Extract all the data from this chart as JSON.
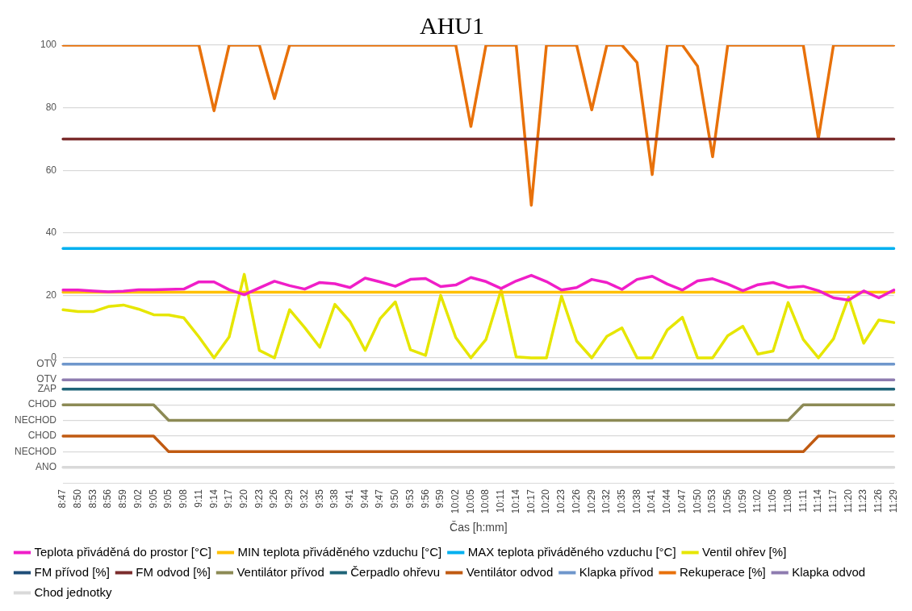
{
  "chart_data": {
    "type": "line",
    "title": "AHU1",
    "xlabel": "Čas [h:mm]",
    "categories": [
      "8:47",
      "8:50",
      "8:53",
      "8:56",
      "8:59",
      "9:02",
      "9:05",
      "9:05",
      "9:08",
      "9:11",
      "9:14",
      "9:17",
      "9:20",
      "9:23",
      "9:26",
      "9:29",
      "9:32",
      "9:35",
      "9:38",
      "9:41",
      "9:44",
      "9:47",
      "9:50",
      "9:53",
      "9:56",
      "9:59",
      "10:02",
      "10:05",
      "10:08",
      "10:11",
      "10:14",
      "10:17",
      "10:20",
      "10:23",
      "10:26",
      "10:29",
      "10:32",
      "10:35",
      "10:38",
      "10:41",
      "10:44",
      "10:47",
      "10:50",
      "10:53",
      "10:56",
      "10:59",
      "11:02",
      "11:05",
      "11:08",
      "11:11",
      "11:14",
      "11:17",
      "11:20",
      "11:23",
      "11:26",
      "11:29"
    ],
    "ylim": [
      -40,
      100
    ],
    "yticks": [
      0,
      20,
      40,
      60,
      80,
      100,
      {
        "value": -2,
        "label": "OTV"
      },
      {
        "value": -7,
        "label": "OTV"
      },
      {
        "value": -10,
        "label": "ZAP"
      },
      {
        "value": -15,
        "label": "CHOD"
      },
      {
        "value": -20,
        "label": "NECHOD"
      },
      {
        "value": -25,
        "label": "CHOD"
      },
      {
        "value": -30,
        "label": "NECHOD"
      },
      {
        "value": -35,
        "label": "ANO"
      }
    ],
    "grid": "y",
    "legend": "bottom",
    "marker": "none",
    "line_style": "solid",
    "series": [
      {
        "name": "Teplota přiváděná do prostor [°C]",
        "color": "#f01ec8",
        "values": [
          21.7,
          21.7,
          21.4,
          21.1,
          21.3,
          21.8,
          21.8,
          21.9,
          22,
          24.3,
          24.3,
          21.8,
          20.2,
          22.4,
          24.5,
          23.1,
          22,
          24.1,
          23.7,
          22.5,
          25.5,
          24.3,
          22.9,
          25.1,
          25.4,
          22.8,
          23.3,
          25.7,
          24.4,
          22.2,
          24.6,
          26.4,
          24.4,
          21.7,
          22.5,
          25.1,
          24.1,
          21.9,
          25.1,
          26.1,
          23.6,
          21.7,
          24.6,
          25.3,
          23.6,
          21.5,
          23.4,
          24.1,
          22.5,
          22.9,
          21.5,
          19.2,
          18.5,
          21.4,
          19.2,
          21.7
        ]
      },
      {
        "name": "MIN teplota přiváděného vzduchu [°C]",
        "color": "#ffc000",
        "values": [
          21,
          21,
          21,
          21,
          21,
          21,
          21,
          21,
          21,
          21,
          21,
          21,
          21,
          21,
          21,
          21,
          21,
          21,
          21,
          21,
          21,
          21,
          21,
          21,
          21,
          21,
          21,
          21,
          21,
          21,
          21,
          21,
          21,
          21,
          21,
          21,
          21,
          21,
          21,
          21,
          21,
          21,
          21,
          21,
          21,
          21,
          21,
          21,
          21,
          21,
          21,
          21,
          21,
          21,
          21,
          21
        ]
      },
      {
        "name": "MAX teplota přiváděného vzduchu [°C]",
        "color": "#00b0f0",
        "values": [
          35,
          35,
          35,
          35,
          35,
          35,
          35,
          35,
          35,
          35,
          35,
          35,
          35,
          35,
          35,
          35,
          35,
          35,
          35,
          35,
          35,
          35,
          35,
          35,
          35,
          35,
          35,
          35,
          35,
          35,
          35,
          35,
          35,
          35,
          35,
          35,
          35,
          35,
          35,
          35,
          35,
          35,
          35,
          35,
          35,
          35,
          35,
          35,
          35,
          35,
          35,
          35,
          35,
          35,
          35,
          35
        ]
      },
      {
        "name": "Ventil ohřev [%]",
        "color": "#e6e600",
        "values": [
          15.4,
          14.8,
          14.8,
          16.4,
          16.9,
          15.6,
          13.8,
          13.7,
          12.8,
          6.7,
          0,
          6.7,
          26.7,
          2.4,
          0,
          15.4,
          9.7,
          3.4,
          17.1,
          11.6,
          2.4,
          12.6,
          17.9,
          2.6,
          0.8,
          20,
          6.5,
          0,
          5.9,
          21.7,
          0.3,
          0,
          0,
          19.7,
          5.4,
          0,
          6.9,
          9.6,
          0,
          0,
          8.9,
          13,
          0,
          0,
          7.1,
          10.1,
          1.2,
          2.2,
          17.7,
          5.9,
          0,
          6.1,
          19.4,
          4.7,
          12.1,
          11.3
        ]
      },
      {
        "name": "FM přívod [%]",
        "color": "#1f4e79",
        "values": [
          null,
          null,
          null,
          null,
          null,
          null,
          null,
          null,
          null,
          null,
          null,
          null,
          null,
          null,
          null,
          null,
          null,
          null,
          null,
          null,
          null,
          null,
          null,
          null,
          null,
          null,
          null,
          null,
          null,
          null,
          null,
          null,
          null,
          null,
          null,
          null,
          null,
          null,
          null,
          null,
          null,
          null,
          null,
          null,
          null,
          null,
          null,
          null,
          null,
          null,
          null,
          null,
          null,
          null,
          null,
          null
        ]
      },
      {
        "name": "FM odvod [%]",
        "color": "#7b2c2c",
        "values": [
          70,
          70,
          70,
          70,
          70,
          70,
          70,
          70,
          70,
          70,
          70,
          70,
          70,
          70,
          70,
          70,
          70,
          70,
          70,
          70,
          70,
          70,
          70,
          70,
          70,
          70,
          70,
          70,
          70,
          70,
          70,
          70,
          70,
          70,
          70,
          70,
          70,
          70,
          70,
          70,
          70,
          70,
          70,
          70,
          70,
          70,
          70,
          70,
          70,
          70,
          70,
          70,
          70,
          70,
          70,
          70
        ]
      },
      {
        "name": "Ventilátor přívod",
        "color": "#8c8a55",
        "values": [
          -15,
          -15,
          -15,
          -15,
          -15,
          -15,
          -15,
          -20,
          -20,
          -20,
          -20,
          -20,
          -20,
          -20,
          -20,
          -20,
          -20,
          -20,
          -20,
          -20,
          -20,
          -20,
          -20,
          -20,
          -20,
          -20,
          -20,
          -20,
          -20,
          -20,
          -20,
          -20,
          -20,
          -20,
          -20,
          -20,
          -20,
          -20,
          -20,
          -20,
          -20,
          -20,
          -20,
          -20,
          -20,
          -20,
          -20,
          -20,
          -20,
          -15,
          -15,
          -15,
          -15,
          -15,
          -15,
          -15
        ]
      },
      {
        "name": "Čerpadlo ohřevu",
        "color": "#1f6478",
        "values": [
          -10,
          -10,
          -10,
          -10,
          -10,
          -10,
          -10,
          -10,
          -10,
          -10,
          -10,
          -10,
          -10,
          -10,
          -10,
          -10,
          -10,
          -10,
          -10,
          -10,
          -10,
          -10,
          -10,
          -10,
          -10,
          -10,
          -10,
          -10,
          -10,
          -10,
          -10,
          -10,
          -10,
          -10,
          -10,
          -10,
          -10,
          -10,
          -10,
          -10,
          -10,
          -10,
          -10,
          -10,
          -10,
          -10,
          -10,
          -10,
          -10,
          -10,
          -10,
          -10,
          -10,
          -10,
          -10,
          -10
        ]
      },
      {
        "name": "Ventilátor odvod",
        "color": "#c05a11",
        "values": [
          -25,
          -25,
          -25,
          -25,
          -25,
          -25,
          -25,
          -30,
          -30,
          -30,
          -30,
          -30,
          -30,
          -30,
          -30,
          -30,
          -30,
          -30,
          -30,
          -30,
          -30,
          -30,
          -30,
          -30,
          -30,
          -30,
          -30,
          -30,
          -30,
          -30,
          -30,
          -30,
          -30,
          -30,
          -30,
          -30,
          -30,
          -30,
          -30,
          -30,
          -30,
          -30,
          -30,
          -30,
          -30,
          -30,
          -30,
          -30,
          -30,
          -30,
          -25,
          -25,
          -25,
          -25,
          -25,
          -25
        ]
      },
      {
        "name": "Klapka přívod",
        "color": "#6f97cc",
        "values": [
          -2,
          -2,
          -2,
          -2,
          -2,
          -2,
          -2,
          -2,
          -2,
          -2,
          -2,
          -2,
          -2,
          -2,
          -2,
          -2,
          -2,
          -2,
          -2,
          -2,
          -2,
          -2,
          -2,
          -2,
          -2,
          -2,
          -2,
          -2,
          -2,
          -2,
          -2,
          -2,
          -2,
          -2,
          -2,
          -2,
          -2,
          -2,
          -2,
          -2,
          -2,
          -2,
          -2,
          -2,
          -2,
          -2,
          -2,
          -2,
          -2,
          -2,
          -2,
          -2,
          -2,
          -2,
          -2,
          -2
        ]
      },
      {
        "name": "Rekuperace [%]",
        "color": "#e8710a",
        "values": [
          100,
          100,
          100,
          100,
          100,
          100,
          100,
          100,
          100,
          100,
          79,
          100,
          100,
          100,
          82.9,
          100,
          100,
          100,
          100,
          100,
          100,
          100,
          100,
          100,
          100,
          100,
          100,
          74,
          100,
          100,
          100,
          48.8,
          100,
          100,
          100,
          79.3,
          100,
          100,
          94.4,
          58.6,
          100,
          100,
          93.3,
          64.3,
          100,
          100,
          100,
          100,
          100,
          100,
          70.1,
          100,
          100,
          100,
          100,
          100
        ]
      },
      {
        "name": "Klapka odvod",
        "color": "#8e7cb0",
        "values": [
          -7,
          -7,
          -7,
          -7,
          -7,
          -7,
          -7,
          -7,
          -7,
          -7,
          -7,
          -7,
          -7,
          -7,
          -7,
          -7,
          -7,
          -7,
          -7,
          -7,
          -7,
          -7,
          -7,
          -7,
          -7,
          -7,
          -7,
          -7,
          -7,
          -7,
          -7,
          -7,
          -7,
          -7,
          -7,
          -7,
          -7,
          -7,
          -7,
          -7,
          -7,
          -7,
          -7,
          -7,
          -7,
          -7,
          -7,
          -7,
          -7,
          -7,
          -7,
          -7,
          -7,
          -7,
          -7,
          -7
        ]
      },
      {
        "name": "Chod jednotky",
        "color": "#d9d9d9",
        "values": [
          -35,
          -35,
          -35,
          -35,
          -35,
          -35,
          -35,
          -35,
          -35,
          -35,
          -35,
          -35,
          -35,
          -35,
          -35,
          -35,
          -35,
          -35,
          -35,
          -35,
          -35,
          -35,
          -35,
          -35,
          -35,
          -35,
          -35,
          -35,
          -35,
          -35,
          -35,
          -35,
          -35,
          -35,
          -35,
          -35,
          -35,
          -35,
          -35,
          -35,
          -35,
          -35,
          -35,
          -35,
          -35,
          -35,
          -35,
          -35,
          -35,
          -35,
          -35,
          -35,
          -35,
          -35,
          -35,
          -35
        ]
      }
    ]
  }
}
